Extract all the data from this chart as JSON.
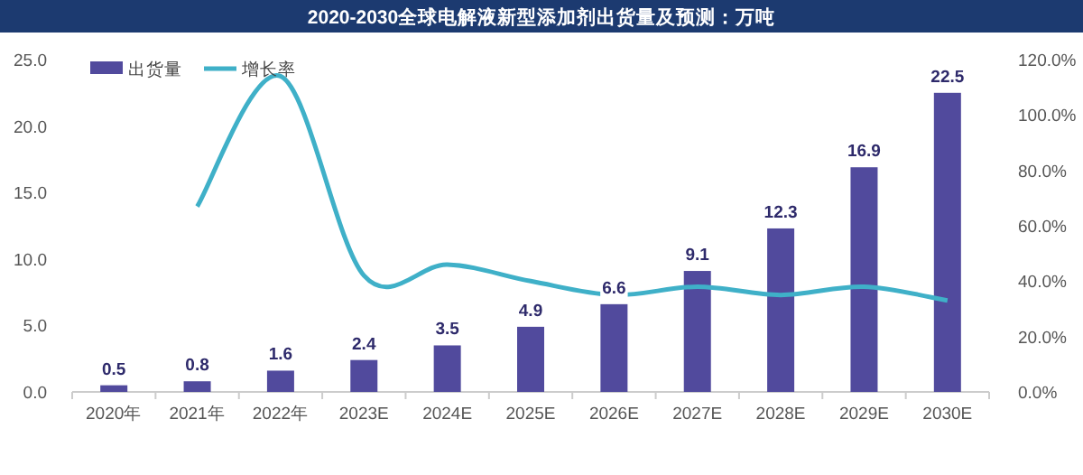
{
  "chart_data": {
    "type": "bar",
    "title": "2020-2030全球电解液新型添加剂出货量及预测：万吨",
    "categories": [
      "2020年",
      "2021年",
      "2022年",
      "2023E",
      "2024E",
      "2025E",
      "2026E",
      "2027E",
      "2028E",
      "2029E",
      "2030E"
    ],
    "series": [
      {
        "name": "出货量",
        "color": "#514a9d",
        "values": [
          0.5,
          0.8,
          1.6,
          2.4,
          3.5,
          4.9,
          6.6,
          9.1,
          12.3,
          16.9,
          22.5
        ],
        "value_labels": [
          "0.5",
          "0.8",
          "1.6",
          "2.4",
          "3.5",
          "4.9",
          "6.6",
          "9.1",
          "12.3",
          "16.9",
          "22.5"
        ]
      },
      {
        "name": "增长率",
        "type": "line",
        "axis": "y2",
        "color": "#3fb0c8",
        "values": [
          null,
          67,
          114,
          42,
          46,
          40,
          35,
          38,
          35,
          38,
          33
        ]
      }
    ],
    "ylim": [
      0,
      25
    ],
    "yticks": [
      {
        "value": 0,
        "label": "0.0"
      },
      {
        "value": 5,
        "label": "5.0"
      },
      {
        "value": 10,
        "label": "10.0"
      },
      {
        "value": 15,
        "label": "15.0"
      },
      {
        "value": 20,
        "label": "20.0"
      },
      {
        "value": 25,
        "label": "25.0"
      }
    ],
    "y2lim": [
      0,
      120
    ],
    "y2ticks": [
      {
        "value": 0,
        "label": "0.0%"
      },
      {
        "value": 20,
        "label": "20.0%"
      },
      {
        "value": 40,
        "label": "40.0%"
      },
      {
        "value": 60,
        "label": "60.0%"
      },
      {
        "value": 80,
        "label": "80.0%"
      },
      {
        "value": 100,
        "label": "100.0%"
      },
      {
        "value": 120,
        "label": "120.0%"
      }
    ],
    "legend": "top left",
    "grid": false,
    "marker": "none"
  }
}
